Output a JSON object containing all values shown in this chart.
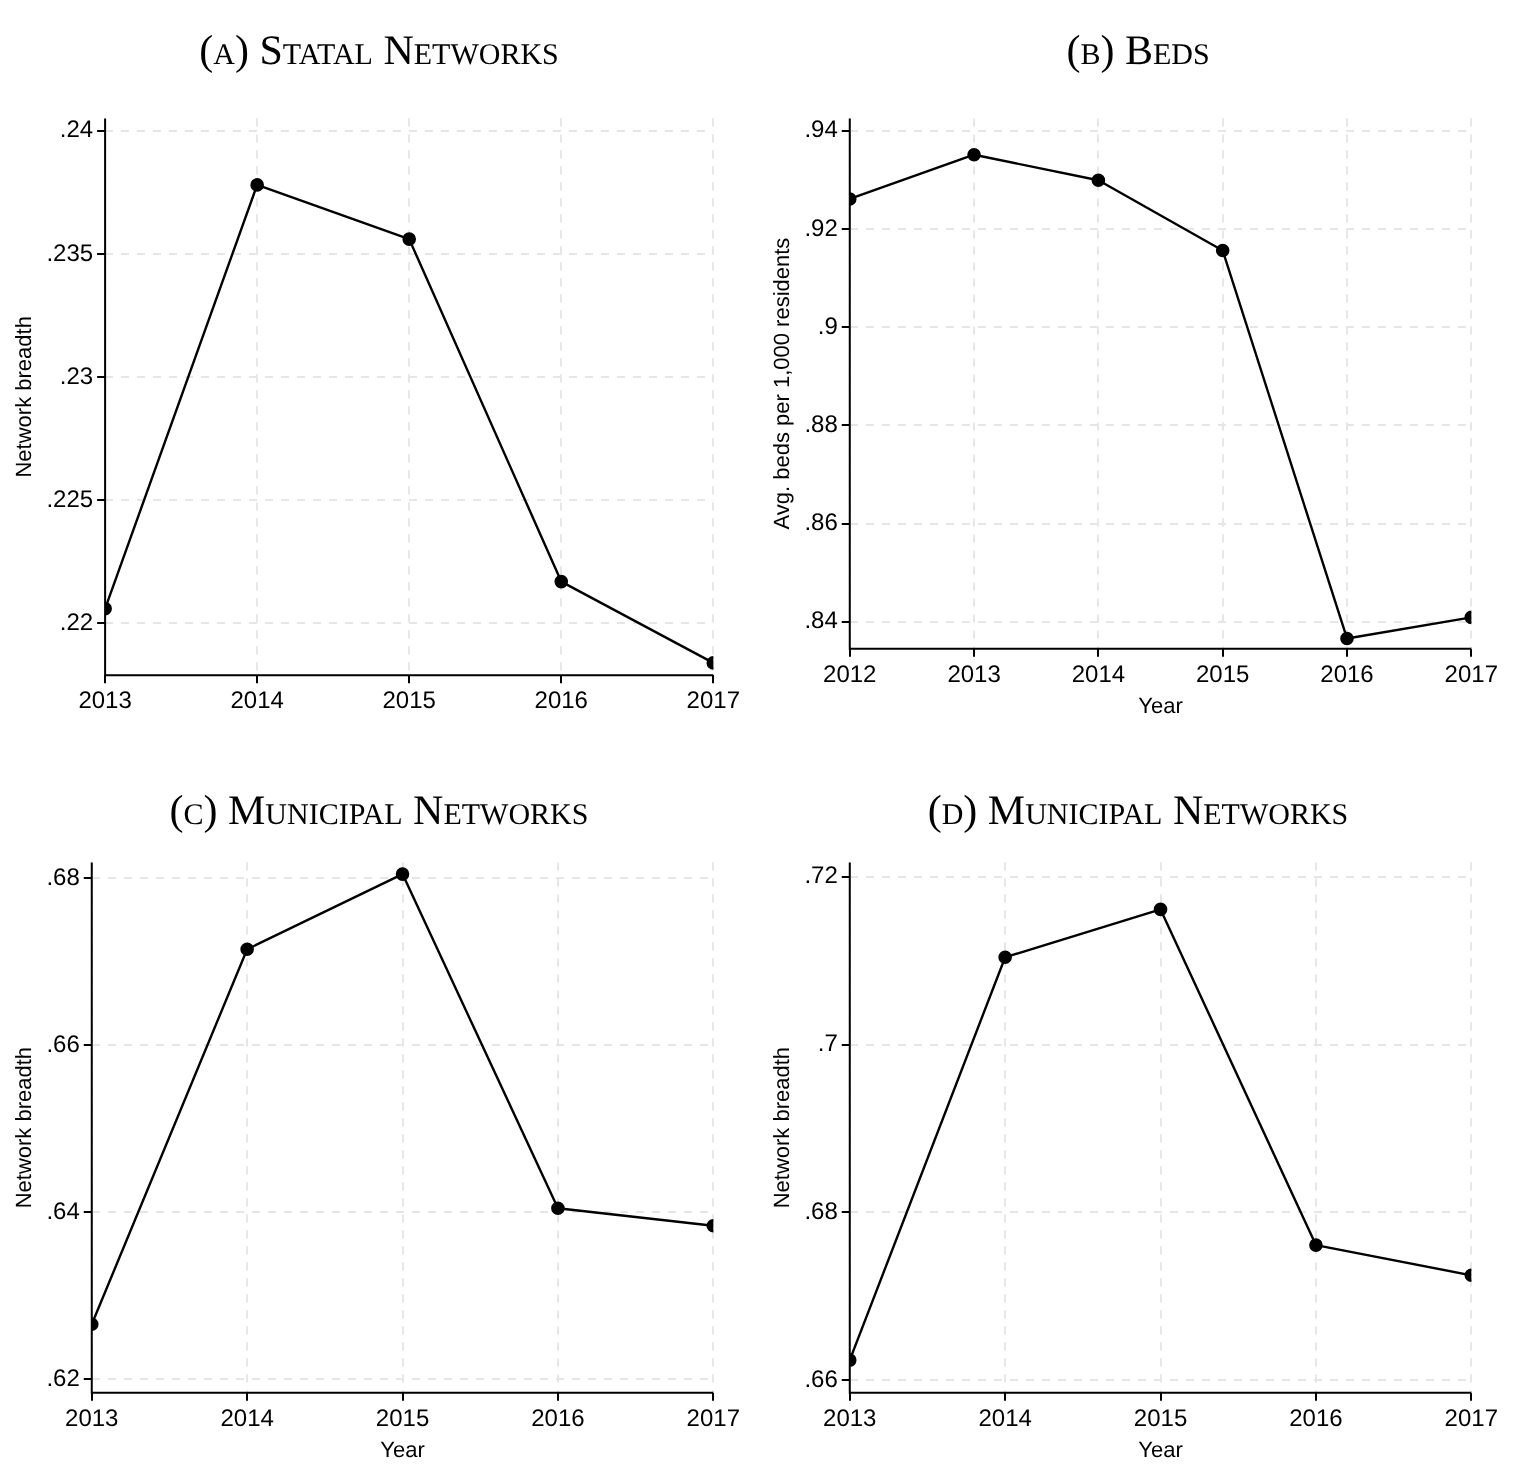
{
  "chart_data": [
    {
      "type": "line",
      "title": "(a) Statal Networks",
      "ylabel": "Network breadth",
      "x": [
        2013,
        2014,
        2015,
        2016,
        2017
      ],
      "values": [
        0.2206,
        0.2378,
        0.2356,
        0.2217,
        0.2184
      ],
      "color": "#000000",
      "xlim": [
        2013,
        2017
      ],
      "xticks": [
        2013,
        2014,
        2015,
        2016,
        2017
      ],
      "ylim": [
        0.2179,
        0.2405
      ],
      "yticks": [
        {
          "value": 0.22,
          "label": ".22"
        },
        {
          "value": 0.225,
          "label": ".225"
        },
        {
          "value": 0.23,
          "label": ".23"
        },
        {
          "value": 0.235,
          "label": ".235"
        },
        {
          "value": 0.24,
          "label": ".24"
        }
      ],
      "grid": true,
      "marker": "circle",
      "line_style": "solid"
    },
    {
      "type": "line",
      "title": "(b) Beds",
      "xlabel": "Year",
      "ylabel": "Avg. beds per 1,000 residents",
      "x": [
        2012,
        2013,
        2014,
        2015,
        2016,
        2017
      ],
      "values": [
        0.9261,
        0.9351,
        0.9299,
        0.9156,
        0.8366,
        0.8409
      ],
      "color": "#000000",
      "xlim": [
        2012,
        2017
      ],
      "xticks": [
        2012,
        2013,
        2014,
        2015,
        2016,
        2017
      ],
      "ylim": [
        0.8345,
        0.9425
      ],
      "yticks": [
        {
          "value": 0.84,
          "label": ".84"
        },
        {
          "value": 0.86,
          "label": ".86"
        },
        {
          "value": 0.88,
          "label": ".88"
        },
        {
          "value": 0.9,
          "label": ".9"
        },
        {
          "value": 0.92,
          "label": ".92"
        },
        {
          "value": 0.94,
          "label": ".94"
        }
      ],
      "grid": true,
      "marker": "circle",
      "line_style": "solid"
    },
    {
      "type": "line",
      "title": "(c) Municipal Networks",
      "xlabel": "Year",
      "ylabel": "Network breadth",
      "x": [
        2013,
        2014,
        2015,
        2016,
        2017
      ],
      "values": [
        0.6266,
        0.6715,
        0.6805,
        0.6405,
        0.6384
      ],
      "color": "#000000",
      "xlim": [
        2013,
        2017
      ],
      "xticks": [
        2013,
        2014,
        2015,
        2016,
        2017
      ],
      "ylim": [
        0.6184,
        0.6819
      ],
      "yticks": [
        {
          "value": 0.62,
          "label": ".62"
        },
        {
          "value": 0.64,
          "label": ".64"
        },
        {
          "value": 0.66,
          "label": ".66"
        },
        {
          "value": 0.68,
          "label": ".68"
        }
      ],
      "grid": true,
      "marker": "circle",
      "line_style": "solid"
    },
    {
      "type": "line",
      "title": "(d) Municipal Networks",
      "xlabel": "Year",
      "ylabel": "Network breadth",
      "x": [
        2013,
        2014,
        2015,
        2016,
        2017
      ],
      "values": [
        0.6624,
        0.7104,
        0.7161,
        0.6761,
        0.6725
      ],
      "color": "#000000",
      "xlim": [
        2013,
        2017
      ],
      "xticks": [
        2013,
        2014,
        2015,
        2016,
        2017
      ],
      "ylim": [
        0.6585,
        0.7217
      ],
      "yticks": [
        {
          "value": 0.66,
          "label": ".66"
        },
        {
          "value": 0.68,
          "label": ".68"
        },
        {
          "value": 0.7,
          "label": ".7"
        },
        {
          "value": 0.72,
          "label": ".72"
        }
      ],
      "grid": true,
      "marker": "circle",
      "line_style": "solid"
    }
  ]
}
